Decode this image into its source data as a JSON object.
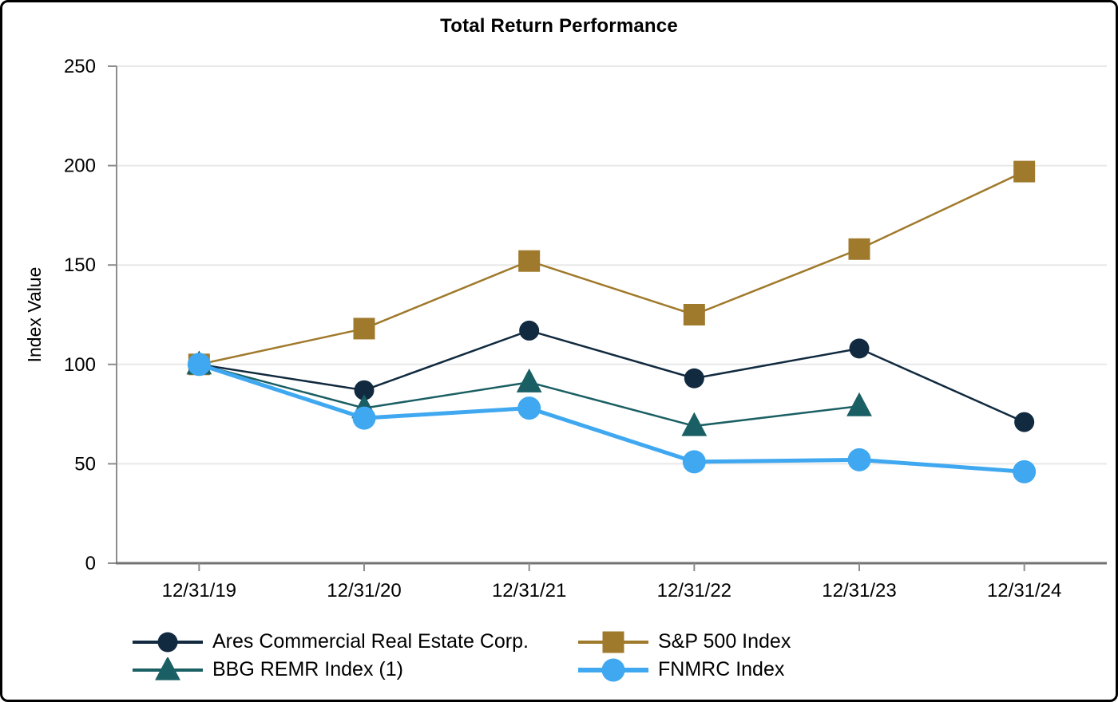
{
  "chart_data": {
    "type": "line",
    "title": "Total Return Performance",
    "ylabel": "Index Value",
    "xlabel": "",
    "ylim": [
      0,
      250
    ],
    "yticks": [
      0,
      50,
      100,
      150,
      200,
      250
    ],
    "grid": "horizontal",
    "legend_position": "bottom",
    "categories": [
      "12/31/19",
      "12/31/20",
      "12/31/21",
      "12/31/22",
      "12/31/23",
      "12/31/24"
    ],
    "series": [
      {
        "name": "Ares Commercial Real Estate Corp.",
        "marker": "circle",
        "color": "#112A3F",
        "line_width": 2.5,
        "marker_size": 25,
        "values": [
          100,
          87,
          117,
          93,
          108,
          71
        ]
      },
      {
        "name": "S&P 500 Index",
        "marker": "square",
        "color": "#A07A2C",
        "line_width": 2.5,
        "marker_size": 27,
        "values": [
          100,
          118,
          152,
          125,
          158,
          197
        ]
      },
      {
        "name": "BBG REMR Index (1)",
        "marker": "triangle",
        "color": "#1A5F63",
        "line_width": 2.5,
        "marker_size": 30,
        "values": [
          100,
          78,
          91,
          69,
          79,
          null
        ]
      },
      {
        "name": "FNMRC Index",
        "marker": "circle",
        "color": "#3FA8F0",
        "line_width": 5,
        "marker_size": 29,
        "values": [
          100,
          73,
          78,
          51,
          52,
          46
        ]
      }
    ],
    "colors": {
      "gridline": "#E8E8E8",
      "y_axis": "#8C8C8C",
      "x_axis": "#737373",
      "text": "#000000"
    }
  }
}
